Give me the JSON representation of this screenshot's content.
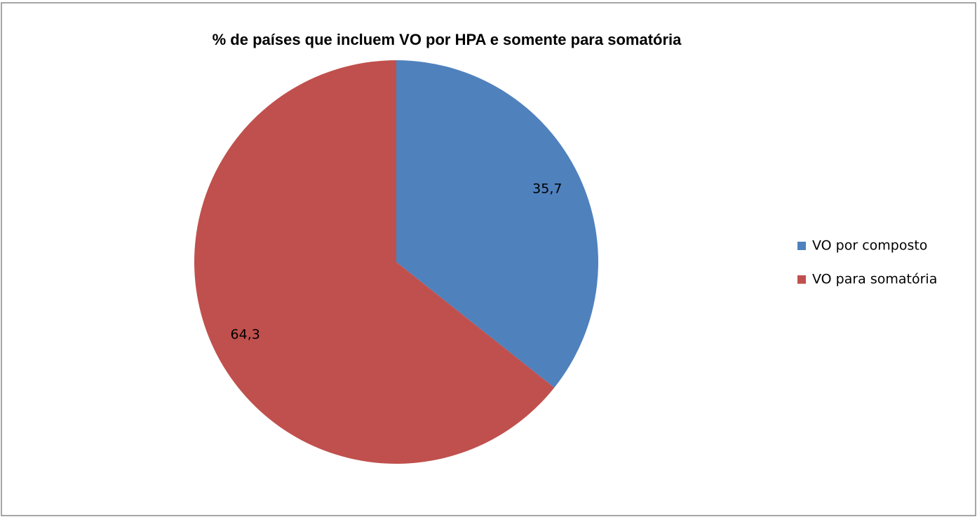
{
  "chart_data": {
    "type": "pie",
    "title": "% de países que incluem VO por HPA e somente para somatória",
    "categories": [
      "VO por composto",
      "VO para somatória"
    ],
    "values": [
      35.7,
      64.3
    ],
    "value_labels": [
      "35,7",
      "64,3"
    ],
    "colors": [
      "#4f81bd",
      "#c0504d"
    ],
    "legend": "right"
  }
}
